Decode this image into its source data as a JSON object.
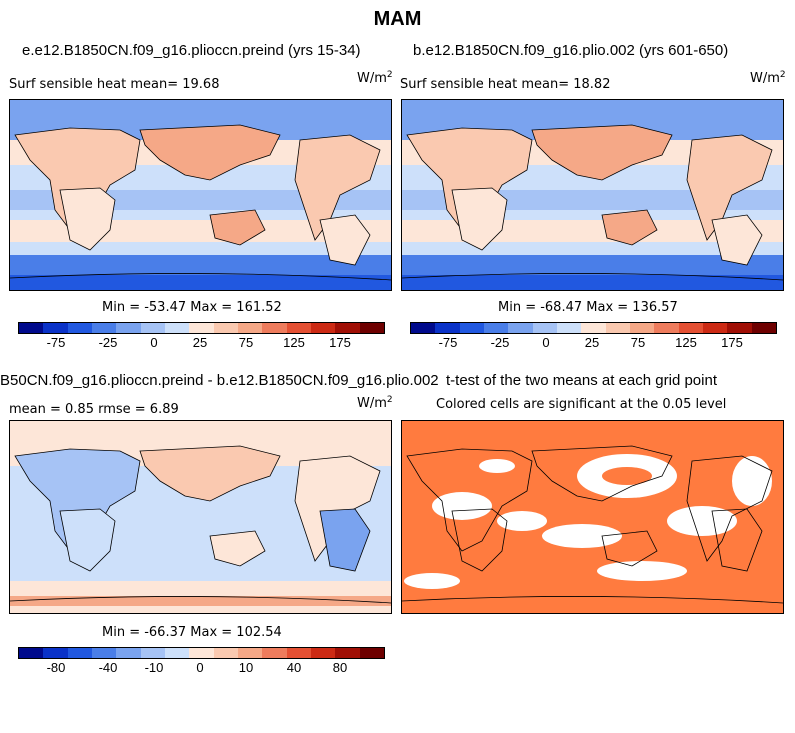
{
  "page_title": "MAM",
  "panels": [
    {
      "title": "e.e12.B1850CN.f09_g16.plioccn.preind (yrs 15-34)",
      "left_label": "Surf sensible heat   mean=  19.68",
      "units_base": "W/m",
      "units_exp": "2",
      "minmax": "Min = -53.47 Max = 161.52",
      "ticks": [
        "-75",
        "-25",
        "0",
        "25",
        "75",
        "125",
        "175"
      ]
    },
    {
      "title": "b.e12.B1850CN.f09_g16.plio.002 (yrs 601-650)",
      "left_label": "Surf sensible heat   mean=  18.82",
      "units_base": "W/m",
      "units_exp": "2",
      "minmax": "Min = -68.47 Max = 136.57",
      "ticks": [
        "-75",
        "-25",
        "0",
        "25",
        "75",
        "125",
        "175"
      ]
    },
    {
      "title": "B50CN.f09_g16.plioccn.preind - b.e12.B1850CN.f09_g16.plio.002",
      "left_label": "mean =    0.85      rmse =    6.89",
      "units_base": "W/m",
      "units_exp": "2",
      "minmax": "Min = -66.37 Max = 102.54",
      "ticks": [
        "-80",
        "-40",
        "-10",
        "0",
        "10",
        "40",
        "80"
      ]
    },
    {
      "title": "t-test of the two means at each grid point",
      "subtitle": "Colored cells are significant at the 0.05 level"
    }
  ],
  "colors": {
    "scale": [
      "#000a8c",
      "#0a32c8",
      "#2158e0",
      "#4a7ee8",
      "#7aa3ef",
      "#a6c3f5",
      "#cde0fa",
      "#fde6d8",
      "#fac9b0",
      "#f5a887",
      "#ee7c5d",
      "#e45033",
      "#cc2a14",
      "#a00f05",
      "#6e0000"
    ],
    "significant": "#ff7b3f",
    "ocean_warm": "#fde6d8",
    "ocean_cool": "#cde0fa",
    "ice": "#2158e0"
  }
}
